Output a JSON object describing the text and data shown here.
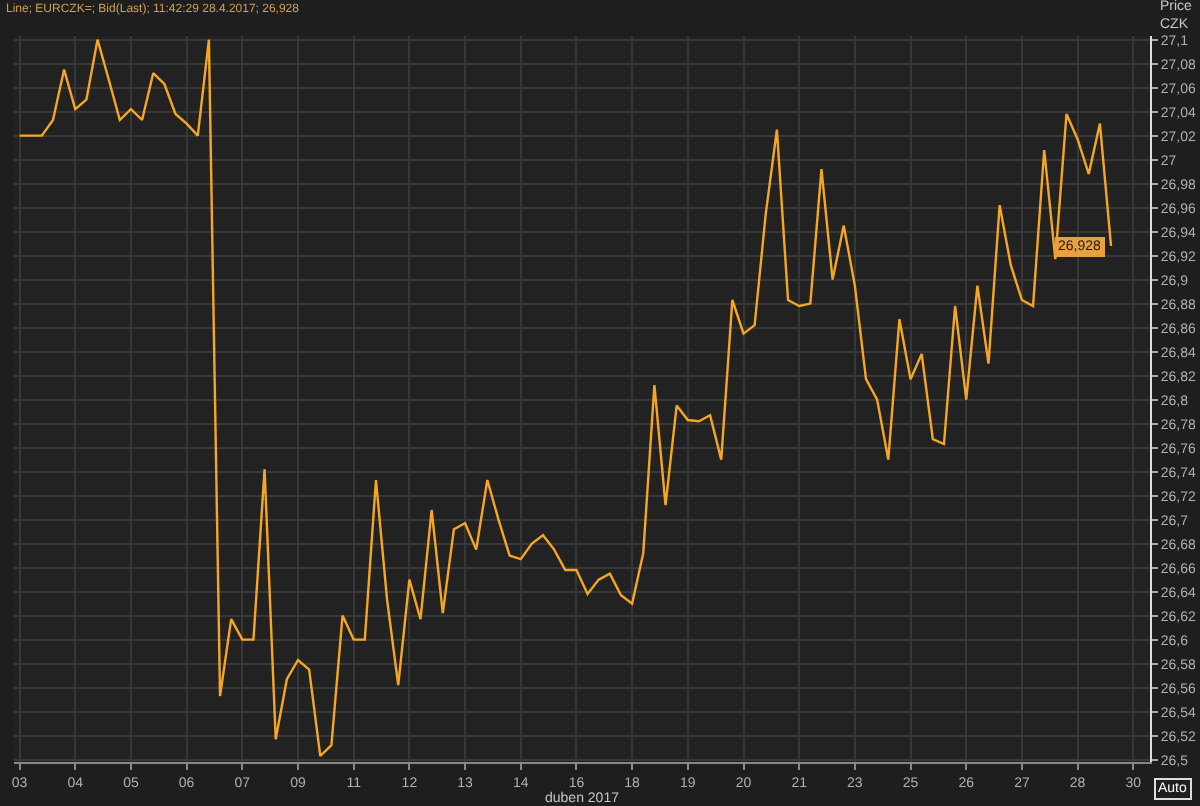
{
  "chart_data": {
    "type": "line",
    "title": "Line; EURCZK=; Bid(Last); 11:42:29 28.4.2017; 26,928",
    "xlabel": "duben 2017",
    "ylabel": "Price\nCZK",
    "annotations": [
      {
        "text": "26,928",
        "y": 26.928
      },
      "Auto"
    ],
    "categories": [
      "03",
      null,
      null,
      null,
      null,
      "04",
      null,
      null,
      null,
      null,
      "05",
      null,
      null,
      null,
      null,
      "06",
      null,
      null,
      null,
      null,
      "07",
      null,
      null,
      null,
      null,
      "09",
      null,
      null,
      null,
      null,
      "11",
      null,
      null,
      null,
      null,
      "12",
      null,
      null,
      null,
      null,
      "13",
      null,
      null,
      null,
      null,
      "14",
      null,
      null,
      null,
      null,
      "16",
      null,
      null,
      null,
      null,
      "18",
      null,
      null,
      null,
      null,
      "19",
      null,
      null,
      null,
      null,
      "20",
      null,
      null,
      null,
      null,
      "21",
      null,
      null,
      null,
      null,
      "23",
      null,
      null,
      null,
      null,
      "25",
      null,
      null,
      null,
      null,
      "26",
      null,
      null,
      null,
      null,
      "27",
      null,
      null,
      null,
      null,
      "28",
      null,
      null,
      null,
      null,
      "30",
      null
    ],
    "series": [
      {
        "color": "#f5a623",
        "values": [
          27.02,
          27.02,
          27.02,
          27.033,
          27.075,
          27.042,
          27.05,
          27.1,
          27.067,
          27.033,
          27.042,
          27.033,
          27.072,
          27.063,
          27.038,
          27.03,
          27.02,
          27.1,
          26.553,
          26.617,
          26.6,
          26.6,
          26.742,
          26.517,
          26.567,
          26.583,
          26.575,
          26.503,
          26.512,
          26.62,
          26.6,
          26.6,
          26.733,
          26.633,
          26.562,
          26.65,
          26.617,
          26.708,
          26.622,
          26.692,
          26.697,
          26.675,
          26.733,
          26.7,
          26.67,
          26.667,
          26.68,
          26.687,
          26.675,
          26.658,
          26.658,
          26.638,
          26.65,
          26.655,
          26.637,
          26.63,
          26.672,
          26.812,
          26.712,
          26.795,
          26.783,
          26.782,
          26.787,
          26.75,
          26.883,
          26.855,
          26.862,
          26.955,
          27.025,
          26.883,
          26.878,
          26.88,
          26.992,
          26.9,
          26.945,
          26.895,
          26.817,
          26.8,
          26.75,
          26.867,
          26.817,
          26.838,
          26.767,
          26.763,
          26.878,
          26.8,
          26.895,
          26.83,
          26.962,
          26.912,
          26.883,
          26.878,
          27.008,
          26.917,
          27.038,
          27.017,
          26.988,
          27.03,
          26.928,
          null,
          null,
          null
        ]
      }
    ],
    "ylim": [
      26.498,
      27.103
    ],
    "yticks": [
      {
        "value": 26.5,
        "label": "26,5"
      },
      {
        "value": 26.52,
        "label": "26,52"
      },
      {
        "value": 26.54,
        "label": "26,54"
      },
      {
        "value": 26.56,
        "label": "26,56"
      },
      {
        "value": 26.58,
        "label": "26,58"
      },
      {
        "value": 26.6,
        "label": "26,6"
      },
      {
        "value": 26.62,
        "label": "26,62"
      },
      {
        "value": 26.64,
        "label": "26,64"
      },
      {
        "value": 26.66,
        "label": "26,66"
      },
      {
        "value": 26.68,
        "label": "26,68"
      },
      {
        "value": 26.7,
        "label": "26,7"
      },
      {
        "value": 26.72,
        "label": "26,72"
      },
      {
        "value": 26.74,
        "label": "26,74"
      },
      {
        "value": 26.76,
        "label": "26,76"
      },
      {
        "value": 26.78,
        "label": "26,78"
      },
      {
        "value": 26.8,
        "label": "26,8"
      },
      {
        "value": 26.82,
        "label": "26,82"
      },
      {
        "value": 26.84,
        "label": "26,84"
      },
      {
        "value": 26.86,
        "label": "26,86"
      },
      {
        "value": 26.88,
        "label": "26,88"
      },
      {
        "value": 26.9,
        "label": "26,9"
      },
      {
        "value": 26.92,
        "label": "26,92"
      },
      {
        "value": 26.94,
        "label": "26,94"
      },
      {
        "value": 26.96,
        "label": "26,96"
      },
      {
        "value": 26.98,
        "label": "26,98"
      },
      {
        "value": 27,
        "label": "27"
      },
      {
        "value": 27.02,
        "label": "27,02"
      },
      {
        "value": 27.04,
        "label": "27,04"
      },
      {
        "value": 27.06,
        "label": "27,06"
      },
      {
        "value": 27.08,
        "label": "27,08"
      },
      {
        "value": 27.1,
        "label": "27,1"
      }
    ],
    "grid": true,
    "line_style": "solid"
  }
}
